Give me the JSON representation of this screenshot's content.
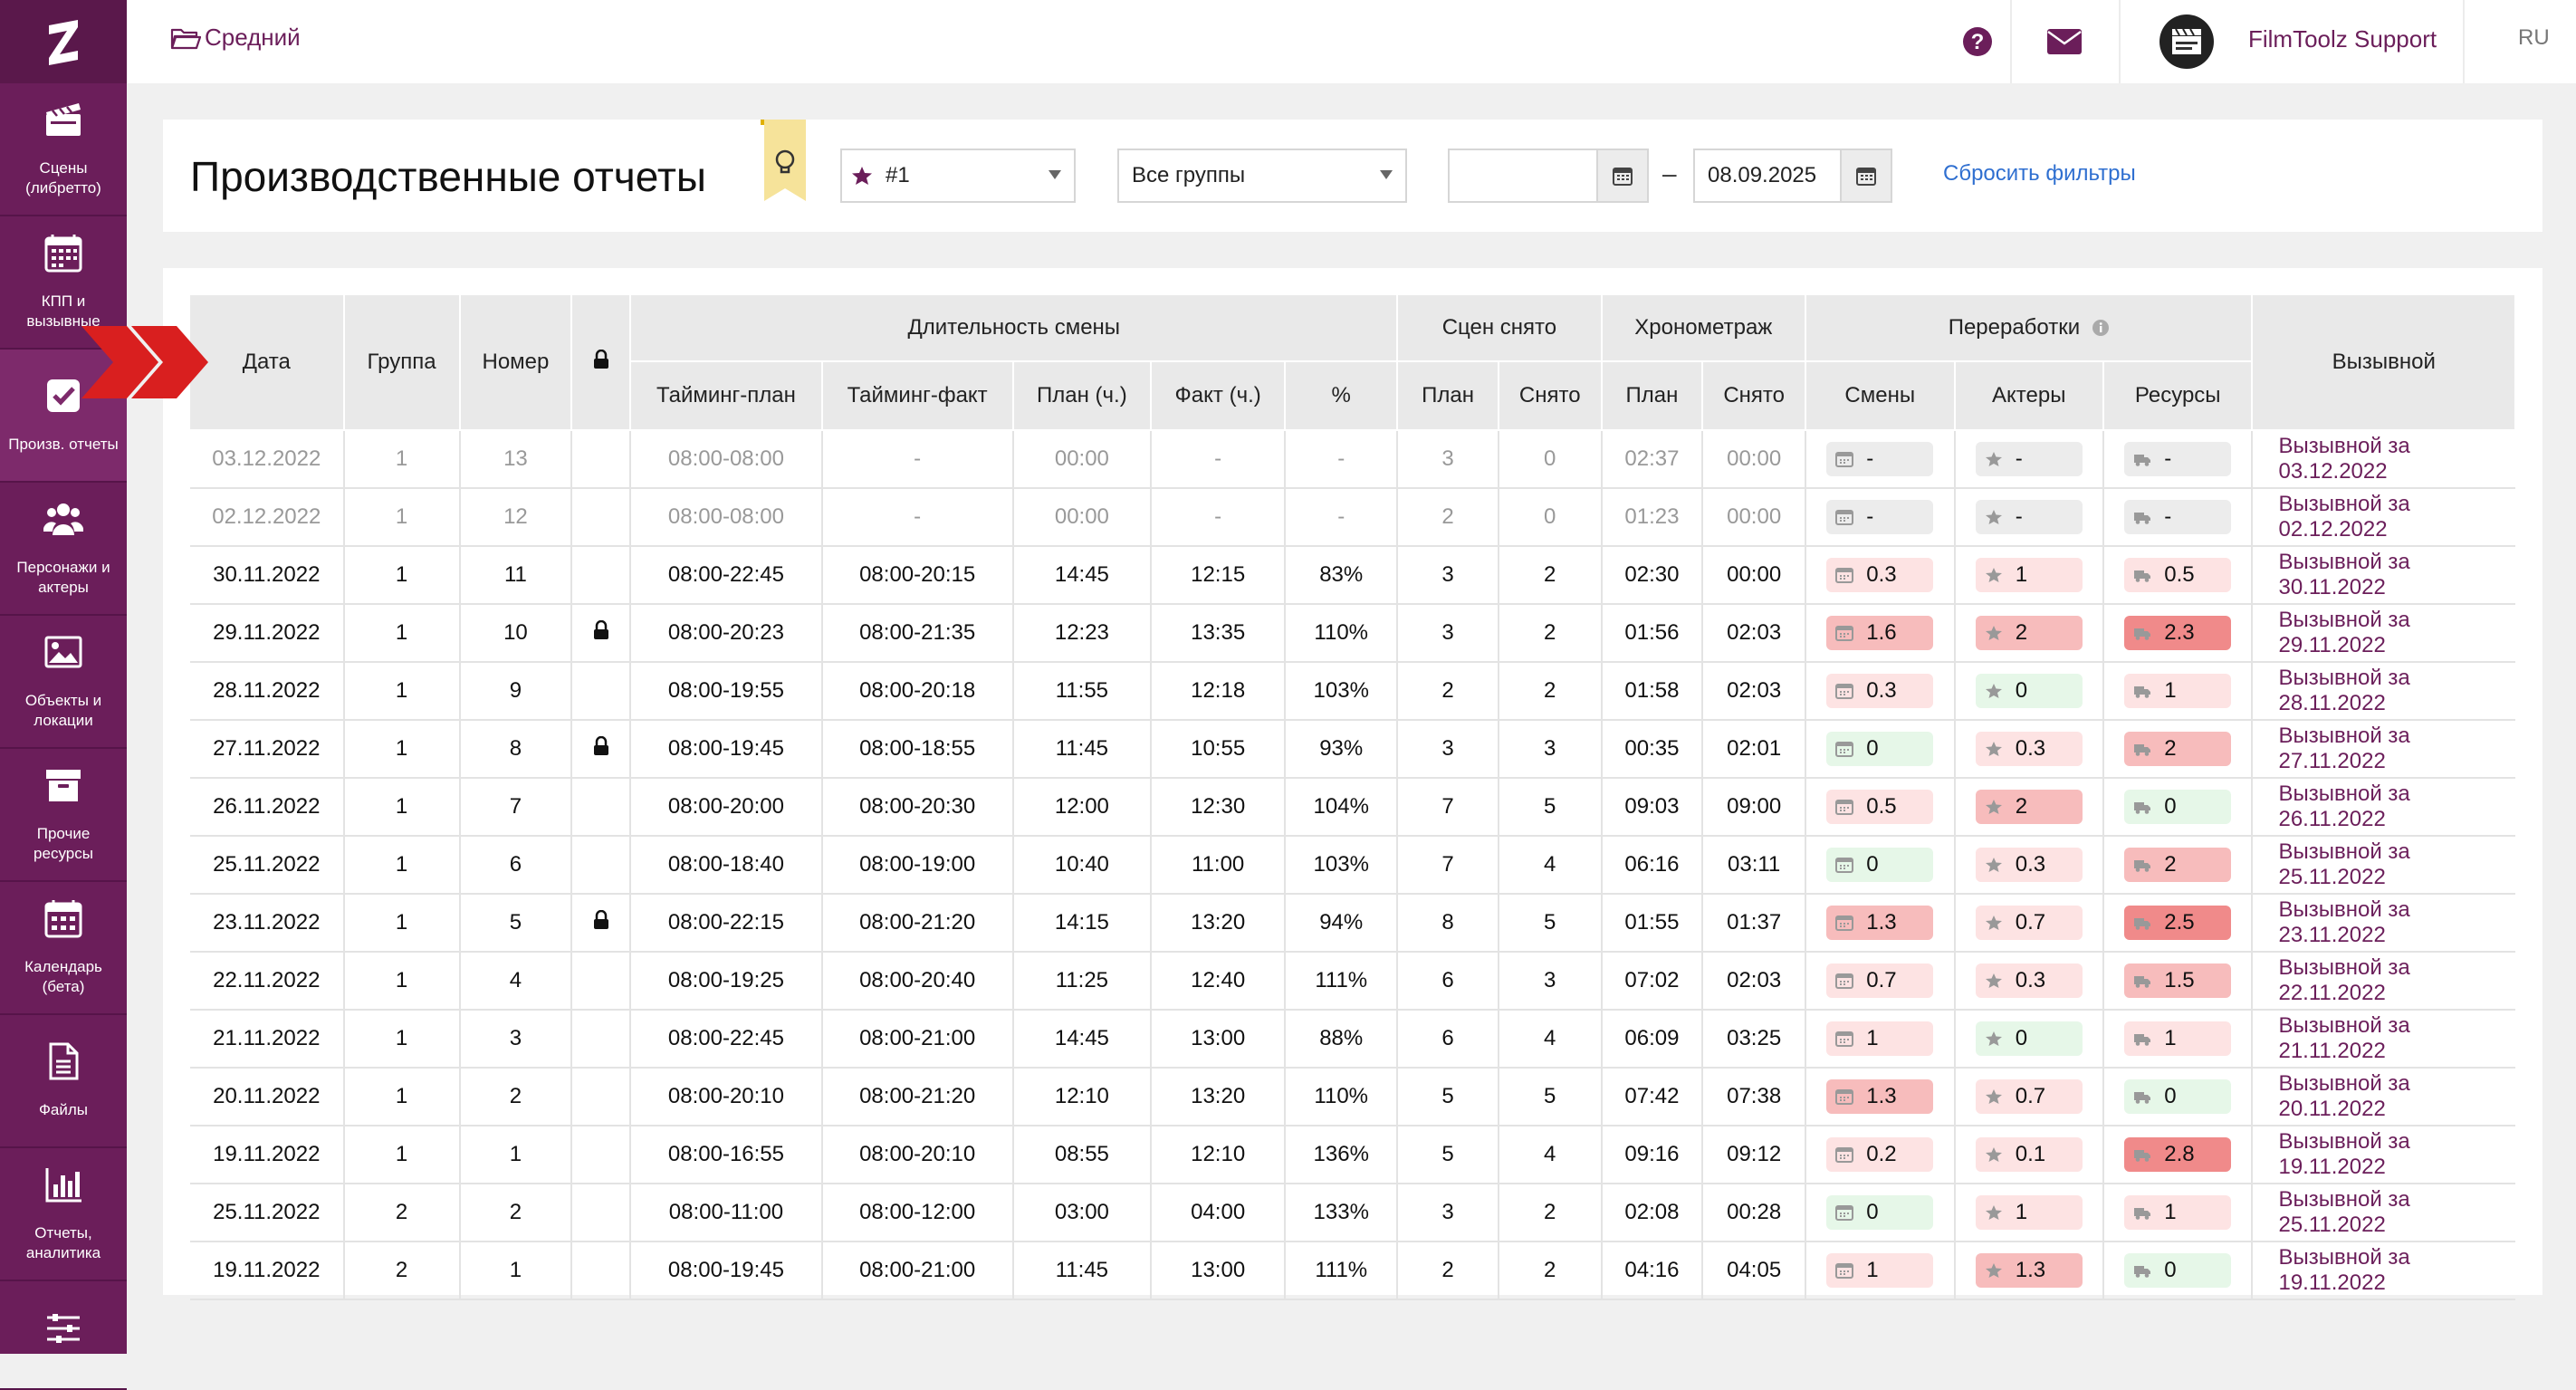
{
  "sidebar": {
    "items": [
      {
        "label": "Сцены\n(либретто)",
        "icon": "clapperboard-icon"
      },
      {
        "label": "КПП и\nвызывные",
        "icon": "calendar-grid-icon"
      },
      {
        "label": "Произв. отчеты",
        "icon": "checkbox-icon",
        "active": true
      },
      {
        "label": "Персонажи и\nактеры",
        "icon": "people-icon"
      },
      {
        "label": "Объекты и\nлокации",
        "icon": "picture-icon"
      },
      {
        "label": "Прочие\nресурсы",
        "icon": "archive-box-icon"
      },
      {
        "label": "Календарь\n(бета)",
        "icon": "calendar-icon"
      },
      {
        "label": "Файлы",
        "icon": "file-icon"
      },
      {
        "label": "Отчеты,\nаналитика",
        "icon": "bar-chart-icon"
      },
      {
        "label": "",
        "icon": "sliders-icon"
      }
    ]
  },
  "topbar": {
    "breadcrumb": "Средний",
    "user_name": "FilmToolz Support",
    "lang": "RU"
  },
  "filters": {
    "title": "Производственные отчеты",
    "group_select": "#1",
    "all_groups_select": "Все группы",
    "date_from": "",
    "date_to": "08.09.2025",
    "date_dash": "–",
    "reset": "Сбросить фильтры"
  },
  "table": {
    "headers": {
      "date": "Дата",
      "group": "Группа",
      "number": "Номер",
      "shift_duration": "Длительность смены",
      "timing_plan": "Тайминг-план",
      "timing_fact": "Тайминг-факт",
      "plan_h": "План (ч.)",
      "fact_h": "Факт (ч.)",
      "percent": "%",
      "scenes_shot": "Сцен снято",
      "plan": "План",
      "shot": "Снято",
      "timing": "Хронометраж",
      "plan2": "План",
      "shot2": "Снято",
      "overtime": "Переработки",
      "shifts": "Смены",
      "actors": "Актеры",
      "resources": "Ресурсы",
      "callsheet": "Вызывной"
    },
    "rows": [
      {
        "date": "03.12.2022",
        "group": "1",
        "num": "13",
        "lock": false,
        "tplan": "08:00-08:00",
        "tfact": "-",
        "ph": "00:00",
        "fh": "-",
        "pct": "-",
        "sp": "3",
        "ss": "0",
        "hp": "02:37",
        "hs": "00:00",
        "shifts": "-",
        "shifts_c": "neutral",
        "actors": "-",
        "actors_c": "neutral",
        "res": "-",
        "res_c": "neutral",
        "cs": "Вызывной за 03.12.2022",
        "muted": true
      },
      {
        "date": "02.12.2022",
        "group": "1",
        "num": "12",
        "lock": false,
        "tplan": "08:00-08:00",
        "tfact": "-",
        "ph": "00:00",
        "fh": "-",
        "pct": "-",
        "sp": "2",
        "ss": "0",
        "hp": "01:23",
        "hs": "00:00",
        "shifts": "-",
        "shifts_c": "neutral",
        "actors": "-",
        "actors_c": "neutral",
        "res": "-",
        "res_c": "neutral",
        "cs": "Вызывной за 02.12.2022",
        "muted": true
      },
      {
        "date": "30.11.2022",
        "group": "1",
        "num": "11",
        "lock": false,
        "tplan": "08:00-22:45",
        "tfact": "08:00-20:15",
        "ph": "14:45",
        "fh": "12:15",
        "pct": "83%",
        "sp": "3",
        "ss": "2",
        "hp": "02:30",
        "hs": "00:00",
        "shifts": "0.3",
        "shifts_c": "light",
        "actors": "1",
        "actors_c": "light",
        "res": "0.5",
        "res_c": "light",
        "cs": "Вызывной за 30.11.2022"
      },
      {
        "date": "29.11.2022",
        "group": "1",
        "num": "10",
        "lock": true,
        "tplan": "08:00-20:23",
        "tfact": "08:00-21:35",
        "ph": "12:23",
        "fh": "13:35",
        "pct": "110%",
        "sp": "3",
        "ss": "2",
        "hp": "01:56",
        "hs": "02:03",
        "shifts": "1.6",
        "shifts_c": "medium",
        "actors": "2",
        "actors_c": "medium",
        "res": "2.3",
        "res_c": "strong",
        "cs": "Вызывной за 29.11.2022"
      },
      {
        "date": "28.11.2022",
        "group": "1",
        "num": "9",
        "lock": false,
        "tplan": "08:00-19:55",
        "tfact": "08:00-20:18",
        "ph": "11:55",
        "fh": "12:18",
        "pct": "103%",
        "sp": "2",
        "ss": "2",
        "hp": "01:58",
        "hs": "02:03",
        "shifts": "0.3",
        "shifts_c": "light",
        "actors": "0",
        "actors_c": "green",
        "res": "1",
        "res_c": "light",
        "cs": "Вызывной за 28.11.2022"
      },
      {
        "date": "27.11.2022",
        "group": "1",
        "num": "8",
        "lock": true,
        "tplan": "08:00-19:45",
        "tfact": "08:00-18:55",
        "ph": "11:45",
        "fh": "10:55",
        "pct": "93%",
        "sp": "3",
        "ss": "3",
        "hp": "00:35",
        "hs": "02:01",
        "shifts": "0",
        "shifts_c": "green",
        "actors": "0.3",
        "actors_c": "light",
        "res": "2",
        "res_c": "medium",
        "cs": "Вызывной за 27.11.2022"
      },
      {
        "date": "26.11.2022",
        "group": "1",
        "num": "7",
        "lock": false,
        "tplan": "08:00-20:00",
        "tfact": "08:00-20:30",
        "ph": "12:00",
        "fh": "12:30",
        "pct": "104%",
        "sp": "7",
        "ss": "5",
        "hp": "09:03",
        "hs": "09:00",
        "shifts": "0.5",
        "shifts_c": "light",
        "actors": "2",
        "actors_c": "medium",
        "res": "0",
        "res_c": "green",
        "cs": "Вызывной за 26.11.2022"
      },
      {
        "date": "25.11.2022",
        "group": "1",
        "num": "6",
        "lock": false,
        "tplan": "08:00-18:40",
        "tfact": "08:00-19:00",
        "ph": "10:40",
        "fh": "11:00",
        "pct": "103%",
        "sp": "7",
        "ss": "4",
        "hp": "06:16",
        "hs": "03:11",
        "shifts": "0",
        "shifts_c": "green",
        "actors": "0.3",
        "actors_c": "light",
        "res": "2",
        "res_c": "medium",
        "cs": "Вызывной за 25.11.2022"
      },
      {
        "date": "23.11.2022",
        "group": "1",
        "num": "5",
        "lock": true,
        "tplan": "08:00-22:15",
        "tfact": "08:00-21:20",
        "ph": "14:15",
        "fh": "13:20",
        "pct": "94%",
        "sp": "8",
        "ss": "5",
        "hp": "01:55",
        "hs": "01:37",
        "shifts": "1.3",
        "shifts_c": "medium",
        "actors": "0.7",
        "actors_c": "light",
        "res": "2.5",
        "res_c": "strong",
        "cs": "Вызывной за 23.11.2022"
      },
      {
        "date": "22.11.2022",
        "group": "1",
        "num": "4",
        "lock": false,
        "tplan": "08:00-19:25",
        "tfact": "08:00-20:40",
        "ph": "11:25",
        "fh": "12:40",
        "pct": "111%",
        "sp": "6",
        "ss": "3",
        "hp": "07:02",
        "hs": "02:03",
        "shifts": "0.7",
        "shifts_c": "light",
        "actors": "0.3",
        "actors_c": "light",
        "res": "1.5",
        "res_c": "medium",
        "cs": "Вызывной за 22.11.2022"
      },
      {
        "date": "21.11.2022",
        "group": "1",
        "num": "3",
        "lock": false,
        "tplan": "08:00-22:45",
        "tfact": "08:00-21:00",
        "ph": "14:45",
        "fh": "13:00",
        "pct": "88%",
        "sp": "6",
        "ss": "4",
        "hp": "06:09",
        "hs": "03:25",
        "shifts": "1",
        "shifts_c": "light",
        "actors": "0",
        "actors_c": "green",
        "res": "1",
        "res_c": "light",
        "cs": "Вызывной за 21.11.2022"
      },
      {
        "date": "20.11.2022",
        "group": "1",
        "num": "2",
        "lock": false,
        "tplan": "08:00-20:10",
        "tfact": "08:00-21:20",
        "ph": "12:10",
        "fh": "13:20",
        "pct": "110%",
        "sp": "5",
        "ss": "5",
        "hp": "07:42",
        "hs": "07:38",
        "shifts": "1.3",
        "shifts_c": "medium",
        "actors": "0.7",
        "actors_c": "light",
        "res": "0",
        "res_c": "green",
        "cs": "Вызывной за 20.11.2022"
      },
      {
        "date": "19.11.2022",
        "group": "1",
        "num": "1",
        "lock": false,
        "tplan": "08:00-16:55",
        "tfact": "08:00-20:10",
        "ph": "08:55",
        "fh": "12:10",
        "pct": "136%",
        "sp": "5",
        "ss": "4",
        "hp": "09:16",
        "hs": "09:12",
        "shifts": "0.2",
        "shifts_c": "light",
        "actors": "0.1",
        "actors_c": "light",
        "res": "2.8",
        "res_c": "strong",
        "cs": "Вызывной за 19.11.2022"
      },
      {
        "date": "25.11.2022",
        "group": "2",
        "num": "2",
        "lock": false,
        "tplan": "08:00-11:00",
        "tfact": "08:00-12:00",
        "ph": "03:00",
        "fh": "04:00",
        "pct": "133%",
        "sp": "3",
        "ss": "2",
        "hp": "02:08",
        "hs": "00:28",
        "shifts": "0",
        "shifts_c": "green",
        "actors": "1",
        "actors_c": "light",
        "res": "1",
        "res_c": "light",
        "cs": "Вызывной за 25.11.2022"
      },
      {
        "date": "19.11.2022",
        "group": "2",
        "num": "1",
        "lock": false,
        "tplan": "08:00-19:45",
        "tfact": "08:00-21:00",
        "ph": "11:45",
        "fh": "13:00",
        "pct": "111%",
        "sp": "2",
        "ss": "2",
        "hp": "04:16",
        "hs": "04:05",
        "shifts": "1",
        "shifts_c": "light",
        "actors": "1.3",
        "actors_c": "medium",
        "res": "0",
        "res_c": "green",
        "cs": "Вызывной за 19.11.2022"
      }
    ]
  },
  "colors": {
    "brand": "#6b1e5a",
    "link": "#2f6fd0",
    "pill_neutral": "#ececec",
    "pill_green": "#e6f7e8",
    "pill_light": "#fde3e3",
    "pill_medium": "#f7bcbc",
    "pill_strong": "#f08a8a"
  }
}
